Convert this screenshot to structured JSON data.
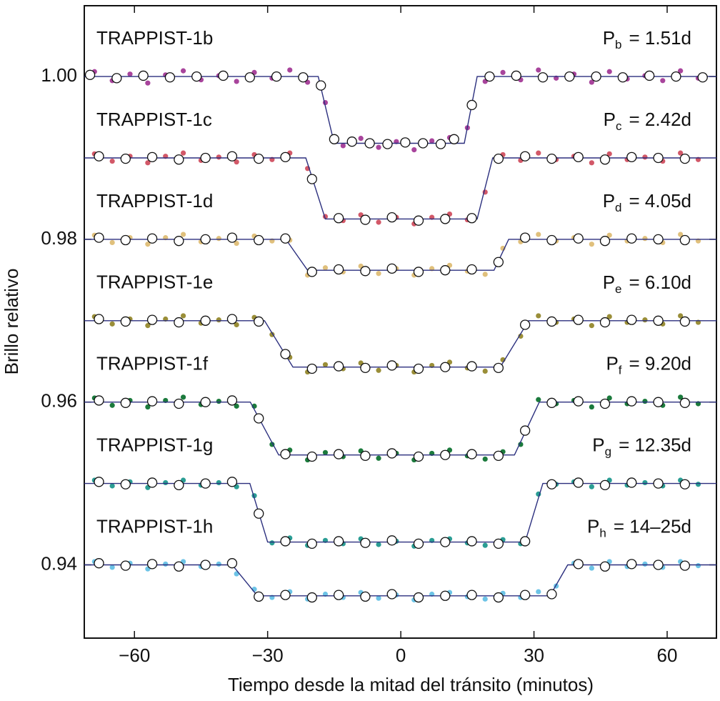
{
  "chart_data": {
    "type": "scatter",
    "xlabel": "Tiempo desde la mitad del tránsito (minutos)",
    "ylabel": "Brillo relativo",
    "xlim": [
      -71.3,
      71.1
    ],
    "ylim": [
      0.931,
      1.0087
    ],
    "xticks": [
      {
        "value": -60,
        "label": "−60"
      },
      {
        "value": -30,
        "label": "−30"
      },
      0,
      30,
      60
    ],
    "yticks": [
      0.94,
      0.96,
      0.98,
      {
        "value": 1.0,
        "label": "1.00"
      }
    ],
    "model_color": "#2b2f7e",
    "series": [
      {
        "name": "TRAPPIST-1b",
        "period": {
          "symbol": "P",
          "subscript": "b",
          "value": "= 1.51d"
        },
        "color": "#a8449c",
        "x": [
          -69,
          -65,
          -61,
          -57,
          -53,
          -49,
          -45,
          -41,
          -37,
          -33,
          -29,
          -25,
          -21,
          -17,
          -13,
          -9,
          -5,
          -1,
          3,
          7,
          11,
          15,
          19,
          23,
          27,
          31,
          35,
          39,
          43,
          47,
          51,
          55,
          59,
          63,
          67
        ],
        "values": [
          1.0006,
          0.9995,
          1.0003,
          0.9992,
          1.0002,
          1.0007,
          0.9996,
          1.0001,
          0.9994,
          1.0005,
          0.9998,
          1.0008,
          0.9993,
          0.9968,
          0.9915,
          0.9924,
          0.9913,
          0.992,
          0.991,
          0.9921,
          0.9925,
          0.9937,
          0.9994,
          1.0005,
          0.9996,
          1.0008,
          0.9998,
          1.0003,
          0.9993,
          1.0006,
          0.9997,
          1.0001,
          0.9995,
          1.0007,
          0.9998
        ],
        "binned": {
          "x": [
            -70,
            -64,
            -58,
            -52,
            -46,
            -40,
            -34,
            -28,
            -22,
            -18,
            -15,
            -11,
            -7,
            -3,
            1,
            5,
            9,
            12,
            16,
            20,
            26,
            32,
            38,
            44,
            50,
            56,
            62,
            68
          ],
          "y": [
            1.0002,
            0.9998,
            1.0001,
            0.9999,
            1.0,
            1.0001,
            0.9999,
            1.0,
            0.9999,
            0.9989,
            0.9923,
            0.992,
            0.9918,
            0.9917,
            0.9919,
            0.9918,
            0.9917,
            0.9923,
            0.9965,
            1.0,
            1.0001,
            0.9999,
            1.0,
            1.0,
            0.9999,
            1.0001,
            1.0,
            0.9999
          ]
        },
        "model": {
          "x": [
            -71.3,
            -18.6,
            -15,
            14.3,
            17.2,
            71.1
          ],
          "y": [
            1.0,
            1.0,
            0.9918,
            0.9918,
            1.0,
            1.0
          ]
        }
      },
      {
        "name": "TRAPPIST-1c",
        "period": {
          "symbol": "P",
          "subscript": "c",
          "value": "= 2.42d"
        },
        "color": "#d25868",
        "x": [
          -69,
          -65,
          -61,
          -57,
          -53,
          -49,
          -45,
          -41,
          -37,
          -33,
          -29,
          -25,
          -21,
          -17,
          -13,
          -9,
          -5,
          -1,
          3,
          7,
          11,
          15,
          19,
          23,
          27,
          31,
          35,
          39,
          43,
          47,
          51,
          55,
          59,
          63,
          67
        ],
        "values": [
          0.9905,
          0.9896,
          0.9902,
          0.9894,
          0.9902,
          0.9906,
          0.9897,
          0.9901,
          0.9895,
          0.9904,
          0.9898,
          0.9906,
          0.9887,
          0.9828,
          0.9823,
          0.983,
          0.9821,
          0.9827,
          0.9819,
          0.9827,
          0.9831,
          0.9824,
          0.9858,
          0.9904,
          0.9897,
          0.9906,
          0.9898,
          0.9902,
          0.9894,
          0.9905,
          0.9898,
          0.9901,
          0.9896,
          0.9906,
          0.9898
        ],
        "binned": {
          "x": [
            -68,
            -62,
            -56,
            -50,
            -44,
            -38,
            -32,
            -26,
            -20,
            -14,
            -8,
            -2,
            4,
            10,
            16,
            22,
            28,
            34,
            40,
            46,
            52,
            58,
            64
          ],
          "y": [
            0.9902,
            0.9899,
            0.9901,
            0.9898,
            0.99,
            0.9902,
            0.9899,
            0.9901,
            0.9874,
            0.9826,
            0.9824,
            0.9827,
            0.9823,
            0.9825,
            0.9826,
            0.9899,
            0.9902,
            0.9899,
            0.9901,
            0.9898,
            0.9901,
            0.99,
            0.9899
          ]
        },
        "model": {
          "x": [
            -71.3,
            -21.4,
            -17,
            17.2,
            20.7,
            71.1
          ],
          "y": [
            0.99,
            0.99,
            0.9825,
            0.9825,
            0.99,
            0.99
          ]
        }
      },
      {
        "name": "TRAPPIST-1d",
        "period": {
          "symbol": "P",
          "subscript": "d",
          "value": "= 4.05d"
        },
        "color": "#e0c07c",
        "x": [
          -69,
          -65,
          -61,
          -57,
          -53,
          -49,
          -45,
          -41,
          -37,
          -33,
          -29,
          -25,
          -21,
          -17,
          -13,
          -9,
          -5,
          -1,
          3,
          7,
          11,
          15,
          19,
          23,
          27,
          31,
          35,
          39,
          43,
          47,
          51,
          55,
          59,
          63,
          67
        ],
        "values": [
          0.9805,
          0.9796,
          0.9802,
          0.9794,
          0.9802,
          0.9806,
          0.9797,
          0.9801,
          0.9795,
          0.9804,
          0.9798,
          0.9799,
          0.9756,
          0.9765,
          0.976,
          0.9767,
          0.9758,
          0.9764,
          0.9756,
          0.9764,
          0.9768,
          0.9761,
          0.9757,
          0.9789,
          0.9797,
          0.9806,
          0.9798,
          0.9802,
          0.9794,
          0.9805,
          0.9798,
          0.9801,
          0.9796,
          0.9806,
          0.9798
        ],
        "binned": {
          "x": [
            -68,
            -62,
            -56,
            -50,
            -44,
            -38,
            -32,
            -26,
            -20,
            -14,
            -8,
            -2,
            4,
            10,
            16,
            22,
            28,
            34,
            40,
            46,
            52,
            58,
            64
          ],
          "y": [
            0.9802,
            0.9799,
            0.9801,
            0.9798,
            0.98,
            0.9802,
            0.9799,
            0.9801,
            0.976,
            0.9763,
            0.9761,
            0.9764,
            0.976,
            0.9762,
            0.9763,
            0.9772,
            0.9802,
            0.9799,
            0.9801,
            0.9798,
            0.9801,
            0.98,
            0.9799
          ]
        },
        "model": {
          "x": [
            -71.3,
            -25.9,
            -21,
            21,
            24.3,
            71.1
          ],
          "y": [
            0.98,
            0.98,
            0.9762,
            0.9762,
            0.98,
            0.98
          ]
        }
      },
      {
        "name": "TRAPPIST-1e",
        "period": {
          "symbol": "P",
          "subscript": "e",
          "value": "= 6.10d"
        },
        "color": "#9a8e38",
        "x": [
          -69,
          -65,
          -61,
          -57,
          -53,
          -49,
          -45,
          -41,
          -37,
          -33,
          -29,
          -25,
          -21,
          -17,
          -13,
          -9,
          -5,
          -1,
          3,
          7,
          11,
          15,
          19,
          23,
          27,
          31,
          35,
          39,
          43,
          47,
          51,
          55,
          59,
          63,
          67
        ],
        "values": [
          0.9705,
          0.9696,
          0.9702,
          0.9694,
          0.9702,
          0.9706,
          0.9697,
          0.9701,
          0.9695,
          0.9704,
          0.9683,
          0.9655,
          0.9637,
          0.9646,
          0.9641,
          0.9648,
          0.9639,
          0.9645,
          0.9637,
          0.9645,
          0.9649,
          0.9642,
          0.9638,
          0.9652,
          0.9681,
          0.9706,
          0.9698,
          0.9702,
          0.9694,
          0.9705,
          0.9698,
          0.9701,
          0.9696,
          0.9706,
          0.9698
        ],
        "binned": {
          "x": [
            -68,
            -62,
            -56,
            -50,
            -44,
            -38,
            -32,
            -26,
            -20,
            -14,
            -8,
            -2,
            4,
            10,
            16,
            22,
            28,
            34,
            40,
            46,
            52,
            58,
            64
          ],
          "y": [
            0.9702,
            0.9699,
            0.9701,
            0.9698,
            0.97,
            0.9702,
            0.9699,
            0.9659,
            0.9641,
            0.9644,
            0.9642,
            0.9645,
            0.9641,
            0.9643,
            0.9644,
            0.9642,
            0.9695,
            0.9699,
            0.9701,
            0.9698,
            0.9701,
            0.97,
            0.9699
          ]
        },
        "model": {
          "x": [
            -71.3,
            -30.7,
            -24.3,
            22.4,
            28.8,
            71.1
          ],
          "y": [
            0.97,
            0.97,
            0.9643,
            0.9643,
            0.97,
            0.97
          ]
        }
      },
      {
        "name": "TRAPPIST-1f",
        "period": {
          "symbol": "P",
          "subscript": "f",
          "value": "= 9.20d"
        },
        "color": "#1b7a3c",
        "x": [
          -69,
          -65,
          -61,
          -57,
          -53,
          -49,
          -45,
          -41,
          -37,
          -33,
          -29,
          -25,
          -21,
          -17,
          -13,
          -9,
          -5,
          -1,
          3,
          7,
          11,
          15,
          19,
          23,
          27,
          31,
          35,
          39,
          43,
          47,
          51,
          55,
          59,
          63,
          67
        ],
        "values": [
          0.9605,
          0.9596,
          0.9602,
          0.9594,
          0.9602,
          0.9606,
          0.9597,
          0.9601,
          0.9595,
          0.9595,
          0.9548,
          0.9541,
          0.9529,
          0.9538,
          0.9533,
          0.954,
          0.9531,
          0.9537,
          0.9529,
          0.9537,
          0.9541,
          0.9534,
          0.953,
          0.9539,
          0.9548,
          0.9603,
          0.9598,
          0.9602,
          0.9594,
          0.9605,
          0.9598,
          0.9601,
          0.9596,
          0.9606,
          0.9598
        ],
        "binned": {
          "x": [
            -68,
            -62,
            -56,
            -50,
            -44,
            -38,
            -32,
            -26,
            -20,
            -14,
            -8,
            -2,
            4,
            10,
            16,
            22,
            28,
            34,
            40,
            46,
            52,
            58,
            64
          ],
          "y": [
            0.9602,
            0.9599,
            0.9601,
            0.9598,
            0.96,
            0.9602,
            0.958,
            0.9536,
            0.9533,
            0.9536,
            0.9534,
            0.9537,
            0.9533,
            0.9535,
            0.9536,
            0.9534,
            0.9565,
            0.9599,
            0.9601,
            0.9598,
            0.9601,
            0.96,
            0.9599
          ]
        },
        "model": {
          "x": [
            -71.3,
            -33.9,
            -27.5,
            25.6,
            31.2,
            71.1
          ],
          "y": [
            0.96,
            0.96,
            0.9535,
            0.9535,
            0.96,
            0.96
          ]
        }
      },
      {
        "name": "TRAPPIST-1g",
        "period": {
          "symbol": "P",
          "subscript": "g",
          "value": "= 12.35d"
        },
        "color": "#2a9d94",
        "x": [
          -69,
          -65,
          -61,
          -57,
          -53,
          -49,
          -45,
          -41,
          -37,
          -33,
          -29,
          -25,
          -21,
          -17,
          -13,
          -9,
          -5,
          -1,
          3,
          7,
          11,
          15,
          19,
          23,
          27,
          31,
          35,
          39,
          43,
          47,
          51,
          55,
          59,
          63,
          67
        ],
        "values": [
          0.9504,
          0.9497,
          0.9502,
          0.9495,
          0.9501,
          0.9504,
          0.9498,
          0.9501,
          0.9496,
          0.9485,
          0.9427,
          0.9433,
          0.9424,
          0.943,
          0.9426,
          0.9432,
          0.9425,
          0.9429,
          0.9423,
          0.943,
          0.9432,
          0.9427,
          0.9424,
          0.9431,
          0.9426,
          0.9487,
          0.9499,
          0.9502,
          0.9496,
          0.9504,
          0.9498,
          0.9501,
          0.9497,
          0.9504,
          0.9499
        ],
        "binned": {
          "x": [
            -68,
            -62,
            -56,
            -50,
            -44,
            -38,
            -32,
            -26,
            -20,
            -14,
            -8,
            -2,
            4,
            10,
            16,
            22,
            28,
            34,
            40,
            46,
            52,
            58,
            64
          ],
          "y": [
            0.9502,
            0.9499,
            0.9501,
            0.9498,
            0.95,
            0.9502,
            0.9463,
            0.9429,
            0.9426,
            0.9429,
            0.9427,
            0.943,
            0.9426,
            0.9428,
            0.9429,
            0.9426,
            0.9429,
            0.9499,
            0.9501,
            0.9498,
            0.9501,
            0.95,
            0.9499
          ]
        },
        "model": {
          "x": [
            -71.3,
            -34,
            -30,
            28,
            32,
            71.1
          ],
          "y": [
            0.95,
            0.95,
            0.9428,
            0.9428,
            0.95,
            0.95
          ]
        }
      },
      {
        "name": "TRAPPIST-1h",
        "period": {
          "symbol": "P",
          "subscript": "h",
          "value": "= 14–25d"
        },
        "color": "#6cc3e6",
        "x": [
          -69,
          -65,
          -61,
          -57,
          -53,
          -49,
          -45,
          -41,
          -37,
          -33,
          -29,
          -25,
          -21,
          -17,
          -13,
          -9,
          -5,
          -1,
          3,
          7,
          11,
          15,
          19,
          23,
          27,
          31,
          35,
          39,
          43,
          47,
          51,
          55,
          59,
          63,
          67
        ],
        "values": [
          0.9404,
          0.9397,
          0.9402,
          0.9395,
          0.9401,
          0.9404,
          0.9398,
          0.9401,
          0.9389,
          0.937,
          0.936,
          0.9367,
          0.9358,
          0.9364,
          0.936,
          0.9366,
          0.9359,
          0.9363,
          0.9357,
          0.9364,
          0.9366,
          0.9361,
          0.9358,
          0.9365,
          0.936,
          0.9367,
          0.9374,
          0.9402,
          0.9396,
          0.9404,
          0.9398,
          0.9401,
          0.9397,
          0.9404,
          0.9399
        ],
        "binned": {
          "x": [
            -68,
            -62,
            -56,
            -50,
            -44,
            -38,
            -32,
            -26,
            -20,
            -14,
            -8,
            -2,
            4,
            10,
            16,
            22,
            28,
            34,
            40,
            46,
            52,
            58,
            64
          ],
          "y": [
            0.9402,
            0.9399,
            0.9401,
            0.9398,
            0.94,
            0.9402,
            0.9361,
            0.9363,
            0.936,
            0.9363,
            0.9361,
            0.9364,
            0.936,
            0.9362,
            0.9363,
            0.936,
            0.9363,
            0.9364,
            0.9401,
            0.9398,
            0.9401,
            0.94,
            0.9399
          ]
        },
        "model": {
          "x": [
            -71.3,
            -38,
            -32.3,
            33.6,
            37.6,
            71.1
          ],
          "y": [
            0.94,
            0.94,
            0.9362,
            0.9362,
            0.94,
            0.94
          ]
        }
      }
    ]
  }
}
